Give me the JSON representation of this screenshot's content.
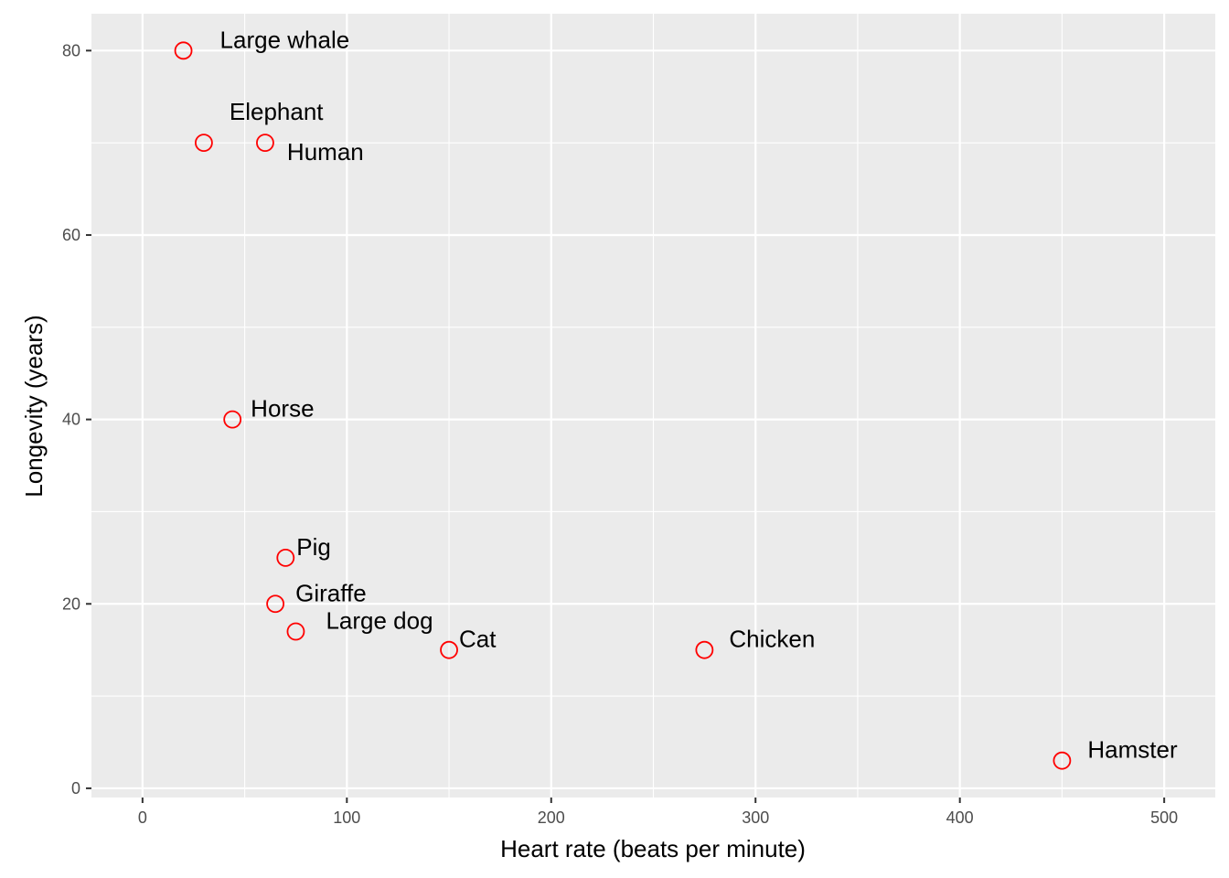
{
  "chart_data": {
    "type": "scatter",
    "title": "",
    "xlabel": "Heart rate (beats per minute)",
    "ylabel": "Longevity (years)",
    "xlim": [
      -25,
      525
    ],
    "ylim": [
      -1,
      84
    ],
    "x_ticks": [
      0,
      100,
      200,
      300,
      400,
      500
    ],
    "y_ticks": [
      0,
      20,
      40,
      60,
      80
    ],
    "x_tick_labels": [
      "0",
      "100",
      "200",
      "300",
      "400",
      "500"
    ],
    "y_tick_labels": [
      "0",
      "20",
      "40",
      "60",
      "80"
    ],
    "grid": true,
    "panel_background": "#ebebeb",
    "grid_color": "#ffffff",
    "point_color": "#ff0000",
    "point_shape": "open-circle",
    "points": [
      {
        "label": "Large whale",
        "x": 20,
        "y": 80
      },
      {
        "label": "Elephant",
        "x": 30,
        "y": 70
      },
      {
        "label": "Human",
        "x": 60,
        "y": 70
      },
      {
        "label": "Horse",
        "x": 44,
        "y": 40
      },
      {
        "label": "Pig",
        "x": 70,
        "y": 25
      },
      {
        "label": "Giraffe",
        "x": 65,
        "y": 20
      },
      {
        "label": "Large dog",
        "x": 75,
        "y": 17
      },
      {
        "label": "Cat",
        "x": 150,
        "y": 15
      },
      {
        "label": "Chicken",
        "x": 275,
        "y": 15
      },
      {
        "label": "Hamster",
        "x": 450,
        "y": 3
      }
    ]
  }
}
